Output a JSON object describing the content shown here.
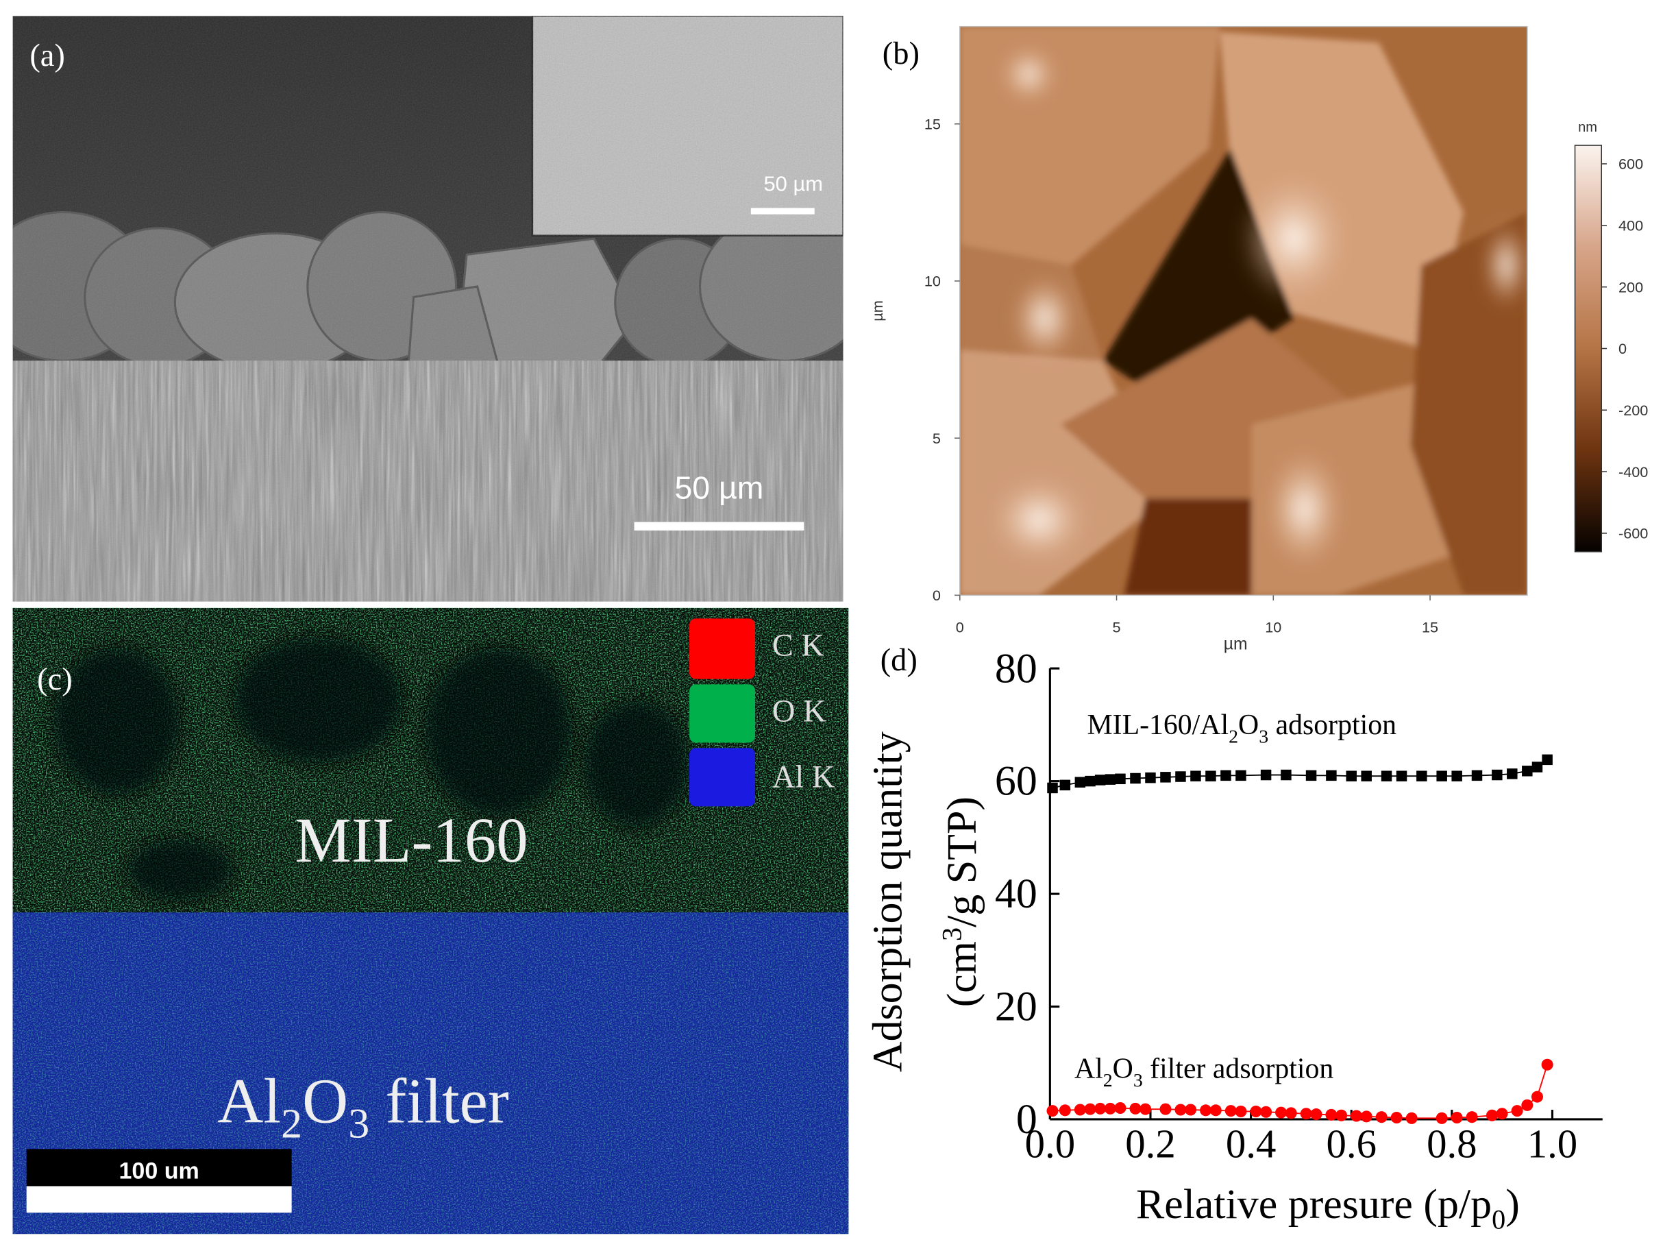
{
  "panels": {
    "a": {
      "label": "(a)",
      "scale_bar": "50 µm",
      "inset_scale_bar": "50 µm"
    },
    "c": {
      "label": "(c)",
      "legend": [
        "C K",
        "O K",
        "Al K"
      ],
      "region_top": "MIL-160",
      "region_bottom": [
        "Al",
        "2",
        "O",
        "3",
        " filter"
      ],
      "scale_bar": "100 um"
    }
  },
  "chart_data": [
    {
      "type": "image",
      "panel_label": "(b)",
      "xlabel": "µm",
      "ylabel": "µm",
      "xlim": [
        0,
        18.1
      ],
      "ylim": [
        0,
        18.1
      ],
      "xticks": [
        0,
        5,
        10,
        15
      ],
      "yticks": [
        0,
        5,
        10,
        15
      ],
      "colorbar": {
        "label": "nm",
        "zlim": [
          -660,
          660
        ],
        "ticks": [
          600,
          400,
          200,
          0,
          -200,
          -400,
          -600
        ]
      }
    },
    {
      "type": "scatter",
      "panel_label": "(d)",
      "xlabel": [
        "Relative presure (p/p",
        "0",
        ")"
      ],
      "ylabel": {
        "line1": "Adsorption quantity",
        "line2": [
          "(cm",
          "3",
          "/g STP)"
        ]
      },
      "xlim": [
        0,
        1.1
      ],
      "ylim": [
        0,
        80
      ],
      "xticks": [
        {
          "value": 0,
          "label": "0.0"
        },
        0.2,
        0.4,
        0.6,
        0.8,
        {
          "value": 1,
          "label": "1.0"
        }
      ],
      "yticks": [
        0,
        20,
        40,
        60,
        80
      ],
      "annotations": [
        [
          "MIL-160/Al",
          "2",
          "O",
          "3",
          " adsorption"
        ],
        [
          "Al",
          "2",
          "O",
          "3",
          " filter adsorption"
        ]
      ],
      "series": [
        {
          "color": "#000000",
          "marker": "square",
          "x": [
            0.005,
            0.03,
            0.06,
            0.08,
            0.1,
            0.12,
            0.14,
            0.17,
            0.2,
            0.23,
            0.26,
            0.29,
            0.32,
            0.35,
            0.38,
            0.43,
            0.47,
            0.52,
            0.56,
            0.6,
            0.63,
            0.67,
            0.7,
            0.74,
            0.78,
            0.81,
            0.85,
            0.89,
            0.92,
            0.95,
            0.97,
            0.99
          ],
          "values": [
            58.8,
            59.3,
            59.8,
            60.0,
            60.2,
            60.3,
            60.4,
            60.5,
            60.6,
            60.7,
            60.8,
            60.9,
            60.9,
            61.0,
            61.0,
            61.1,
            61.1,
            61.0,
            61.0,
            60.9,
            60.9,
            60.9,
            60.9,
            60.9,
            60.9,
            60.9,
            61.0,
            61.1,
            61.3,
            61.8,
            62.5,
            63.8
          ]
        },
        {
          "color": "#ff0000",
          "marker": "circle",
          "x": [
            0.005,
            0.03,
            0.06,
            0.08,
            0.1,
            0.12,
            0.14,
            0.17,
            0.19,
            0.23,
            0.26,
            0.28,
            0.31,
            0.33,
            0.36,
            0.38,
            0.41,
            0.43,
            0.46,
            0.48,
            0.51,
            0.53,
            0.56,
            0.58,
            0.61,
            0.63,
            0.66,
            0.69,
            0.72,
            0.78,
            0.81,
            0.84,
            0.88,
            0.9,
            0.93,
            0.95,
            0.97,
            0.99
          ],
          "values": [
            1.5,
            1.6,
            1.7,
            1.8,
            1.9,
            1.9,
            2.0,
            1.9,
            1.8,
            1.8,
            1.7,
            1.7,
            1.6,
            1.6,
            1.5,
            1.4,
            1.4,
            1.3,
            1.2,
            1.1,
            1.0,
            0.9,
            0.8,
            0.7,
            0.6,
            0.5,
            0.4,
            0.3,
            0.2,
            0.2,
            0.3,
            0.4,
            0.7,
            1.0,
            1.5,
            2.5,
            4.0,
            9.7
          ]
        }
      ]
    }
  ]
}
